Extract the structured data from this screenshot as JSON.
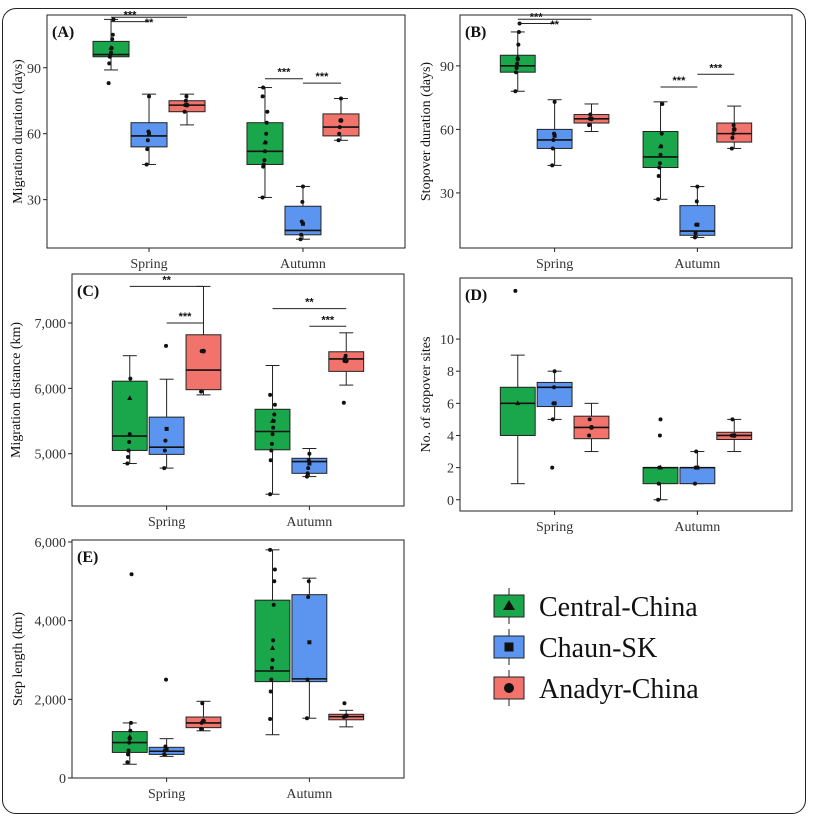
{
  "colors": {
    "Central-China": "#1aa64a",
    "Chaun-SK": "#5b95f0",
    "Anadyr-China": "#f2736b"
  },
  "legend": [
    {
      "name": "Central-China",
      "marker": "triangle"
    },
    {
      "name": "Chaun-SK",
      "marker": "square"
    },
    {
      "name": "Anadyr-China",
      "marker": "circle"
    }
  ],
  "chart_data": [
    {
      "panel": "(A)",
      "type": "box",
      "ylabel": "Migration duration (days)",
      "categories": [
        "Spring",
        "Autumn"
      ],
      "ylim": [
        8,
        114
      ],
      "yticks": [
        30,
        60,
        90
      ],
      "ytick_labels": [
        "30",
        "60",
        "90"
      ],
      "series": [
        {
          "name": "Central-China",
          "boxes": [
            {
              "min": 89,
              "q1": 95,
              "median": 96,
              "q3": 102,
              "max": 112,
              "points": [
                83,
                92,
                95,
                96,
                97,
                99,
                103,
                105,
                112
              ],
              "mean": 99
            },
            {
              "min": 31,
              "q1": 46,
              "median": 52,
              "q3": 65,
              "max": 81,
              "points": [
                31,
                45,
                46,
                48,
                52,
                56,
                60,
                65,
                70,
                77,
                81
              ],
              "mean": 56
            }
          ]
        },
        {
          "name": "Chaun-SK",
          "boxes": [
            {
              "min": 46,
              "q1": 54,
              "median": 59,
              "q3": 65,
              "max": 78,
              "points": [
                46,
                53,
                57,
                61,
                77
              ],
              "mean": 60
            },
            {
              "min": 12,
              "q1": 14,
              "median": 16,
              "q3": 27,
              "max": 36,
              "points": [
                12,
                14,
                20,
                29,
                36
              ],
              "mean": 19
            }
          ]
        },
        {
          "name": "Anadyr-China",
          "boxes": [
            {
              "min": 64,
              "q1": 70,
              "median": 73,
              "q3": 75,
              "max": 78,
              "points": [
                70,
                73,
                75,
                77
              ],
              "mean": 73
            },
            {
              "min": 57,
              "q1": 59,
              "median": 63,
              "q3": 69,
              "max": 76,
              "points": [
                57,
                60,
                63,
                66,
                76
              ],
              "mean": 66
            }
          ]
        }
      ],
      "significance": [
        {
          "label": "***",
          "group": "Spring",
          "from": 0,
          "to": 1,
          "y": 111
        },
        {
          "label": "**",
          "group": "Spring",
          "from": 0,
          "to": 2,
          "y": 113
        },
        {
          "label": "***",
          "group": "Autumn",
          "from": 0,
          "to": 1,
          "y": 85
        },
        {
          "label": "***",
          "group": "Autumn",
          "from": 1,
          "to": 2,
          "y": 83
        }
      ]
    },
    {
      "panel": "(B)",
      "type": "box",
      "ylabel": "Stopover duration (days)",
      "categories": [
        "Spring",
        "Autumn"
      ],
      "ylim": [
        4,
        114
      ],
      "yticks": [
        30,
        60,
        90
      ],
      "ytick_labels": [
        "30",
        "60",
        "90"
      ],
      "series": [
        {
          "name": "Central-China",
          "boxes": [
            {
              "min": 78,
              "q1": 87,
              "median": 90,
              "q3": 95,
              "max": 106,
              "points": [
                78,
                87,
                89,
                91,
                93,
                100,
                106,
                110
              ],
              "mean": 94
            },
            {
              "min": 27,
              "q1": 42,
              "median": 47,
              "q3": 59,
              "max": 73,
              "points": [
                27,
                38,
                42,
                44,
                48,
                52,
                58,
                72
              ],
              "mean": 52
            }
          ]
        },
        {
          "name": "Chaun-SK",
          "boxes": [
            {
              "min": 43,
              "q1": 51,
              "median": 55,
              "q3": 60,
              "max": 74,
              "points": [
                43,
                51,
                55,
                58,
                73
              ],
              "mean": 57
            },
            {
              "min": 9,
              "q1": 10,
              "median": 12,
              "q3": 24,
              "max": 33,
              "points": [
                9,
                11,
                15,
                26,
                33
              ],
              "mean": 15
            }
          ]
        },
        {
          "name": "Anadyr-China",
          "boxes": [
            {
              "min": 59,
              "q1": 63,
              "median": 65,
              "q3": 67,
              "max": 72,
              "points": [
                62,
                65,
                67
              ],
              "mean": 65
            },
            {
              "min": 51,
              "q1": 54,
              "median": 58,
              "q3": 63,
              "max": 71,
              "points": [
                51,
                56,
                58,
                62
              ],
              "mean": 60
            }
          ]
        }
      ],
      "significance": [
        {
          "label": "***",
          "group": "Spring",
          "from": 0,
          "to": 1,
          "y": 110
        },
        {
          "label": "**",
          "group": "Spring",
          "from": 0,
          "to": 2,
          "y": 112
        },
        {
          "label": "***",
          "group": "Autumn",
          "from": 0,
          "to": 1,
          "y": 80
        },
        {
          "label": "***",
          "group": "Autumn",
          "from": 1,
          "to": 2,
          "y": 86
        }
      ]
    },
    {
      "panel": "(C)",
      "type": "box",
      "ylabel": "Migration distance (km)",
      "categories": [
        "Spring",
        "Autumn"
      ],
      "ylim": [
        4200,
        7750
      ],
      "yticks": [
        5000,
        6000,
        7000
      ],
      "ytick_labels": [
        "5,000",
        "6,000",
        "7,000"
      ],
      "series": [
        {
          "name": "Central-China",
          "boxes": [
            {
              "min": 4850,
              "q1": 5050,
              "median": 5270,
              "q3": 6110,
              "max": 6500,
              "points": [
                4850,
                4950,
                5050,
                5180,
                5300,
                6150
              ],
              "mean": 5850
            },
            {
              "min": 4380,
              "q1": 5060,
              "median": 5340,
              "q3": 5680,
              "max": 6350,
              "points": [
                4380,
                4900,
                5050,
                5150,
                5300,
                5400,
                5500,
                5600,
                5750,
                5900
              ],
              "mean": 5500
            }
          ]
        },
        {
          "name": "Chaun-SK",
          "boxes": [
            {
              "min": 4780,
              "q1": 4990,
              "median": 5100,
              "q3": 5560,
              "max": 6140,
              "points": [
                4780,
                5050,
                5200,
                6650
              ],
              "mean": 5380
            },
            {
              "min": 4650,
              "q1": 4700,
              "median": 4880,
              "q3": 4930,
              "max": 5080,
              "points": [
                4650,
                4700,
                4780,
                4900,
                5000
              ],
              "mean": 4850
            }
          ]
        },
        {
          "name": "Anadyr-China",
          "boxes": [
            {
              "min": 5900,
              "q1": 5980,
              "median": 6280,
              "q3": 6820,
              "max": 7560,
              "points": [
                5950,
                6570
              ],
              "mean": 6570
            },
            {
              "min": 6050,
              "q1": 6260,
              "median": 6450,
              "q3": 6560,
              "max": 6850,
              "points": [
                5780,
                6420,
                6460,
                6500
              ],
              "mean": 6420
            }
          ]
        }
      ],
      "significance": [
        {
          "label": "**",
          "group": "Spring",
          "from": 0,
          "to": 2,
          "y": 7560
        },
        {
          "label": "***",
          "group": "Spring",
          "from": 1,
          "to": 2,
          "y": 7000
        },
        {
          "label": "**",
          "group": "Autumn",
          "from": 0,
          "to": 2,
          "y": 7220
        },
        {
          "label": "***",
          "group": "Autumn",
          "from": 1,
          "to": 2,
          "y": 6950
        }
      ]
    },
    {
      "panel": "(D)",
      "type": "box",
      "ylabel": "No. of stopover sites",
      "categories": [
        "Spring",
        "Autumn"
      ],
      "ylim": [
        -0.7,
        13.8
      ],
      "yticks": [
        0,
        2,
        4,
        6,
        8,
        10
      ],
      "ytick_labels": [
        "0",
        "2",
        "4",
        "6",
        "8",
        "10"
      ],
      "series": [
        {
          "name": "Central-China",
          "boxes": [
            {
              "min": 1,
              "q1": 4,
              "median": 6,
              "q3": 7,
              "max": 9,
              "points": [
                13
              ],
              "mean": 6
            },
            {
              "min": 0,
              "q1": 1,
              "median": 2,
              "q3": 2,
              "max": 2,
              "points": [
                0,
                1,
                2,
                4,
                5
              ],
              "mean": 2
            }
          ]
        },
        {
          "name": "Chaun-SK",
          "boxes": [
            {
              "min": 5,
              "q1": 5.8,
              "median": 7,
              "q3": 7.3,
              "max": 8,
              "points": [
                2,
                5,
                6,
                7,
                8
              ],
              "mean": 6
            },
            {
              "min": 1,
              "q1": 1,
              "median": 2,
              "q3": 2,
              "max": 3,
              "points": [
                1,
                2,
                3
              ],
              "mean": 2
            }
          ]
        },
        {
          "name": "Anadyr-China",
          "boxes": [
            {
              "min": 3,
              "q1": 3.8,
              "median": 4.5,
              "q3": 5.2,
              "max": 6,
              "points": [
                4,
                5
              ],
              "mean": 4.5
            },
            {
              "min": 3,
              "q1": 3.75,
              "median": 4,
              "q3": 4.2,
              "max": 5,
              "points": [
                4,
                5
              ],
              "mean": 4
            }
          ]
        }
      ],
      "significance": []
    },
    {
      "panel": "(E)",
      "type": "box",
      "ylabel": "Step length (km)",
      "categories": [
        "Spring",
        "Autumn"
      ],
      "ylim": [
        0,
        6050
      ],
      "yticks": [
        0,
        2000,
        4000,
        6000
      ],
      "ytick_labels": [
        "0",
        "2,000",
        "4,000",
        "6,000"
      ],
      "series": [
        {
          "name": "Central-China",
          "boxes": [
            {
              "min": 350,
              "q1": 650,
              "median": 900,
              "q3": 1180,
              "max": 1400,
              "points": [
                400,
                600,
                700,
                900,
                1000,
                1200,
                1400,
                5180
              ],
              "mean": 1050
            },
            {
              "min": 1100,
              "q1": 2450,
              "median": 2720,
              "q3": 4520,
              "max": 5800,
              "points": [
                1500,
                2200,
                2500,
                2800,
                3000,
                3500,
                4400,
                5000,
                5300,
                5800
              ],
              "mean": 3300
            }
          ]
        },
        {
          "name": "Chaun-SK",
          "boxes": [
            {
              "min": 550,
              "q1": 600,
              "median": 680,
              "q3": 780,
              "max": 1000,
              "points": [
                600,
                700,
                800,
                2500
              ],
              "mean": 720
            },
            {
              "min": 1520,
              "q1": 2450,
              "median": 2520,
              "q3": 4660,
              "max": 5080,
              "points": [
                1520,
                2500,
                4600,
                5000
              ],
              "mean": 3450
            }
          ]
        },
        {
          "name": "Anadyr-China",
          "boxes": [
            {
              "min": 1200,
              "q1": 1280,
              "median": 1400,
              "q3": 1550,
              "max": 1950,
              "points": [
                1250,
                1400,
                1900
              ],
              "mean": 1450
            },
            {
              "min": 1300,
              "q1": 1480,
              "median": 1560,
              "q3": 1620,
              "max": 1720,
              "points": [
                1550,
                1900
              ],
              "mean": 1580
            }
          ]
        }
      ],
      "significance": []
    }
  ]
}
